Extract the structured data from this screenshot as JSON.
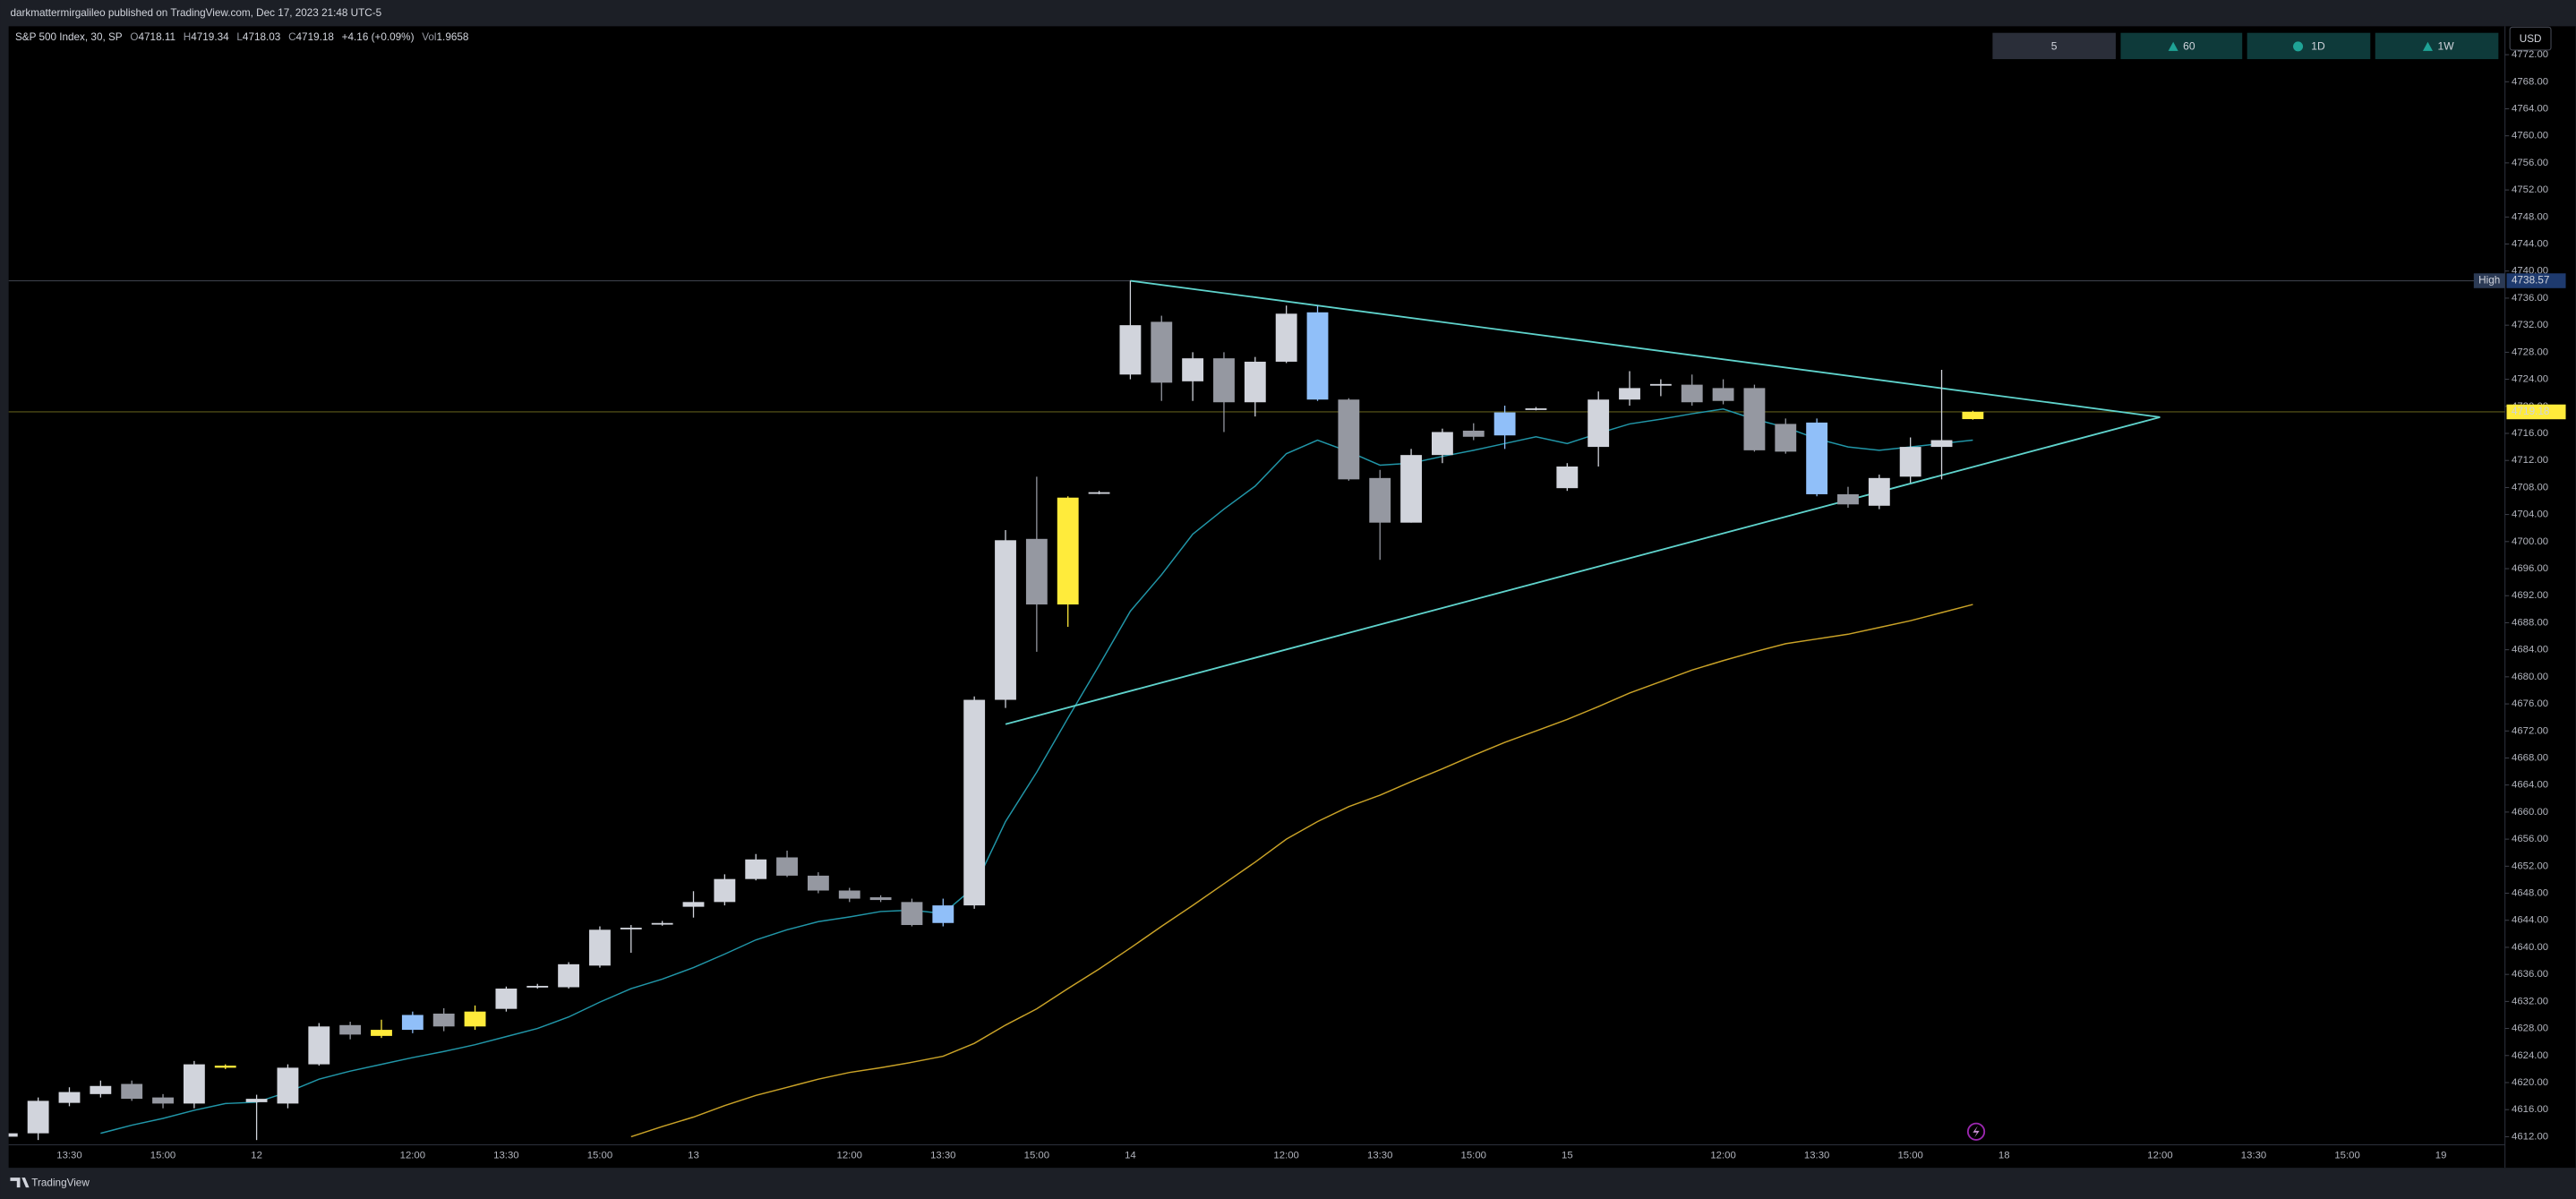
{
  "header": {
    "publisher": "darkmattermirgalileo published on TradingView.com, Dec 17, 2023 21:48 UTC-5",
    "symbol": "S&P 500 Index, 30, SP",
    "ohlc_labels": [
      "O",
      "H",
      "L",
      "C"
    ],
    "change": "+4.16 (+0.09%)",
    "volume_label": "Vol",
    "volume": 1.9658
  },
  "toolbar": {
    "intervals": [
      "5",
      "60",
      "1D",
      "1W"
    ],
    "currency": "USD"
  },
  "footer": "TradingView",
  "chart_data": {
    "type": "candlestick",
    "categories": [
      null,
      null,
      "13:30",
      null,
      null,
      "15:00",
      null,
      null,
      "12",
      null,
      null,
      null,
      null,
      "12:00",
      null,
      null,
      "13:30",
      null,
      null,
      "15:00",
      null,
      null,
      "13",
      null,
      null,
      null,
      null,
      "12:00",
      null,
      null,
      "13:30",
      null,
      null,
      "15:00",
      null,
      null,
      "14",
      null,
      null,
      null,
      null,
      "12:00",
      null,
      null,
      "13:30",
      null,
      null,
      "15:00",
      null,
      null,
      "15",
      null,
      null,
      null,
      null,
      "12:00",
      null,
      null,
      "13:30",
      null,
      null,
      "15:00",
      null,
      null,
      "18",
      null,
      null,
      null,
      null,
      "12:00",
      null,
      null,
      "13:30",
      null,
      null,
      "15:00",
      null,
      null,
      "19"
    ],
    "open": [
      4612,
      4612.5,
      4617,
      4618.3,
      4619.8,
      4617.8,
      4616.9,
      4622.2,
      4617.1,
      4616.9,
      4622.7,
      4628.5,
      4626.9,
      4627.8,
      4630.2,
      4628.3,
      4630.9,
      4634.1,
      4634.1,
      4637.3,
      4642.8,
      4643.5,
      4646,
      4646.7,
      4650.1,
      4653.3,
      4650.6,
      4648.4,
      4647.4,
      4646.7,
      4643.6,
      4646.2,
      4676.6,
      4700.4,
      4690.7,
      4707.2,
      4724.7,
      4732.5,
      4723.7,
      4727.1,
      4720.6,
      4726.6,
      4733.9,
      4721,
      4709.4,
      4702.8,
      4712.8,
      4716.4,
      4715.7,
      4719.6,
      4707.9,
      4714,
      4721,
      4723.1,
      4723.2,
      4722.7,
      4722.7,
      4717.4,
      4717.6,
      4707,
      4705.3,
      4709.6,
      4714,
      4718.11,
      null,
      null,
      null,
      null,
      null,
      null,
      null,
      null,
      null,
      null,
      null,
      null,
      null,
      null,
      null
    ],
    "high": [
      4613,
      4617.8,
      4619.3,
      4620.3,
      4620.3,
      4618.3,
      4623.2,
      4622.7,
      4618.2,
      4622.7,
      4628.8,
      4629,
      4629.3,
      4630.5,
      4631,
      4631.4,
      4634.2,
      4634.6,
      4637.8,
      4643.1,
      4643.3,
      4643.9,
      4648.3,
      4650.8,
      4653.8,
      4654.3,
      4651.1,
      4648.8,
      4647.7,
      4647.2,
      4647.2,
      4677.1,
      4701.7,
      4709.6,
      4706.7,
      4707.5,
      4738.57,
      4733.4,
      4728,
      4728,
      4727.3,
      4734.9,
      4734.9,
      4721.2,
      4710.6,
      4713.7,
      4716.7,
      4717.5,
      4720.1,
      4719.9,
      4711.6,
      4722.2,
      4725.2,
      4724,
      4724.7,
      4724,
      4723.2,
      4718.2,
      4718.2,
      4708.1,
      4709.9,
      4715.4,
      4725.4,
      4719.34,
      null,
      null,
      null,
      null,
      null,
      null,
      null,
      null,
      null,
      null,
      null,
      null,
      null,
      null,
      null
    ],
    "low": [
      4611,
      4611.5,
      4616.5,
      4617.8,
      4617.3,
      4616.2,
      4616.2,
      4622,
      4611.5,
      4616.2,
      4622.5,
      4626.4,
      4626.6,
      4627.3,
      4627.6,
      4627.8,
      4630.5,
      4633.9,
      4633.9,
      4637,
      4639.2,
      4643.2,
      4644.4,
      4646.2,
      4649.9,
      4650.4,
      4648,
      4646.7,
      4646.7,
      4643.1,
      4643.1,
      4645.7,
      4675.4,
      4683.7,
      4687.4,
      4707,
      4724,
      4720.8,
      4720.8,
      4716.2,
      4718.5,
      4726.4,
      4720.8,
      4709,
      4697.3,
      4702.8,
      4711.6,
      4715,
      4713.7,
      4719.4,
      4707.5,
      4711.1,
      4720.1,
      4721.5,
      4720.1,
      4720.3,
      4713.3,
      4713,
      4706.7,
      4705,
      4704.8,
      4708.7,
      4709.2,
      4718.03,
      null,
      null,
      null,
      null,
      null,
      null,
      null,
      null,
      null,
      null,
      null,
      null,
      null,
      null,
      null
    ],
    "close": [
      4612.5,
      4617.3,
      4618.6,
      4619.5,
      4617.6,
      4616.9,
      4622.7,
      4622.5,
      4617.6,
      4622.2,
      4628.3,
      4627.1,
      4627.8,
      4630,
      4628.3,
      4630.5,
      4633.9,
      4634.3,
      4637.5,
      4642.6,
      4642.9,
      4643.6,
      4646.7,
      4650.1,
      4653,
      4650.6,
      4648.4,
      4647.2,
      4647,
      4643.3,
      4646.2,
      4676.6,
      4700.2,
      4690.7,
      4706.5,
      4707.3,
      4732,
      4723.5,
      4727.1,
      4720.6,
      4726.6,
      4733.7,
      4721,
      4709.2,
      4702.8,
      4712.8,
      4716.2,
      4715.5,
      4719.1,
      4719.7,
      4711.1,
      4721,
      4722.7,
      4723.3,
      4720.6,
      4720.8,
      4713.5,
      4713.3,
      4707,
      4705.5,
      4709.4,
      4714,
      4715,
      4719.18,
      null,
      null,
      null,
      null,
      null,
      null,
      null,
      null,
      null,
      null,
      null,
      null,
      null,
      null,
      null
    ],
    "colors": [
      "#d1d4dc",
      "#d1d4dc",
      "#d1d4dc",
      "#d1d4dc",
      "#9598a1",
      "#9598a1",
      "#d1d4dc",
      "#ffeb3b",
      "#d1d4dc",
      "#d1d4dc",
      "#d1d4dc",
      "#9598a1",
      "#ffeb3b",
      "#90bff9",
      "#9598a1",
      "#ffeb3b",
      "#d1d4dc",
      "#d1d4dc",
      "#d1d4dc",
      "#d1d4dc",
      "#d1d4dc",
      "#d1d4dc",
      "#d1d4dc",
      "#d1d4dc",
      "#d1d4dc",
      "#9598a1",
      "#9598a1",
      "#9598a1",
      "#9598a1",
      "#9598a1",
      "#90bff9",
      "#d1d4dc",
      "#d1d4dc",
      "#9598a1",
      "#ffeb3b",
      "#d1d4dc",
      "#d1d4dc",
      "#9598a1",
      "#d1d4dc",
      "#9598a1",
      "#d1d4dc",
      "#d1d4dc",
      "#90bff9",
      "#9598a1",
      "#9598a1",
      "#d1d4dc",
      "#d1d4dc",
      "#9598a1",
      "#90bff9",
      "#d1d4dc",
      "#d1d4dc",
      "#d1d4dc",
      "#d1d4dc",
      "#d1d4dc",
      "#9598a1",
      "#9598a1",
      "#9598a1",
      "#9598a1",
      "#90bff9",
      "#9598a1",
      "#d1d4dc",
      "#d1d4dc",
      "#d1d4dc",
      "#ffeb3b",
      null,
      null,
      null,
      null,
      null,
      null,
      null,
      null,
      null,
      null,
      null,
      null,
      null,
      null,
      null
    ],
    "overlays": [
      {
        "color": "#2196a8",
        "values": [
          null,
          null,
          null,
          4612.5,
          4613.7,
          4614.7,
          4615.9,
          4616.9,
          4617.1,
          4618.6,
          4620.5,
          4621.7,
          4622.7,
          4623.7,
          4624.6,
          4625.6,
          4626.8,
          4628.0,
          4629.7,
          4631.9,
          4633.9,
          4635.3,
          4637.0,
          4639.0,
          4641.1,
          4642.6,
          4643.8,
          4644.5,
          4645.3,
          4645.5,
          4645.0,
          4648.9,
          4658.6,
          4665.9,
          4673.9,
          4681.7,
          4689.7,
          4695.1,
          4701.1,
          4704.8,
          4708.2,
          4713.0,
          4715.0,
          4713.3,
          4711.3,
          4711.6,
          4712.6,
          4713.5,
          4714.5,
          4715.5,
          4714.5,
          4716.0,
          4717.4,
          4718.1,
          4718.9,
          4719.6,
          4718.1,
          4716.9,
          4715.2,
          4714.0,
          4713.5,
          4714.0,
          4714.5,
          4715.0,
          null,
          null,
          null,
          null,
          null,
          null,
          null,
          null,
          null,
          null,
          null,
          null,
          null,
          null,
          null
        ]
      },
      {
        "color": "#c9a227",
        "values": [
          null,
          null,
          null,
          null,
          null,
          null,
          null,
          null,
          null,
          null,
          null,
          null,
          null,
          null,
          null,
          null,
          null,
          null,
          null,
          null,
          4612,
          4613.5,
          4614.9,
          4616.6,
          4618.1,
          4619.3,
          4620.5,
          4621.5,
          4622.2,
          4623.0,
          4623.9,
          4625.8,
          4628.5,
          4630.9,
          4633.9,
          4636.8,
          4639.9,
          4643.1,
          4646.2,
          4649.4,
          4652.6,
          4656.0,
          4658.6,
          4660.8,
          4662.5,
          4664.5,
          4666.4,
          4668.4,
          4670.3,
          4672.0,
          4673.7,
          4675.6,
          4677.6,
          4679.3,
          4681.0,
          4682.4,
          4683.7,
          4684.9,
          4685.6,
          4686.3,
          4687.3,
          4688.3,
          4689.5,
          4690.7,
          null,
          null,
          null,
          null,
          null,
          null,
          null,
          null,
          null,
          null,
          null,
          null,
          null,
          null,
          null
        ]
      }
    ],
    "trendlines": [
      {
        "color": "#5fd3cc",
        "from": 4738.57,
        "to": 4718.4
      },
      {
        "color": "#5fd3cc",
        "from": 4673.0,
        "to": 4718.4
      }
    ],
    "high_marker": {
      "label": "High",
      "value": 4738.57
    },
    "ylim": [
      4610.8,
      4776.2
    ],
    "yticks": [
      {
        "value": 4612,
        "label": "4612.00"
      },
      {
        "value": 4616,
        "label": "4616.00"
      },
      {
        "value": 4620,
        "label": "4620.00"
      },
      {
        "value": 4624,
        "label": "4624.00"
      },
      {
        "value": 4628,
        "label": "4628.00"
      },
      {
        "value": 4632,
        "label": "4632.00"
      },
      {
        "value": 4636,
        "label": "4636.00"
      },
      {
        "value": 4640,
        "label": "4640.00"
      },
      {
        "value": 4644,
        "label": "4644.00"
      },
      {
        "value": 4648,
        "label": "4648.00"
      },
      {
        "value": 4652,
        "label": "4652.00"
      },
      {
        "value": 4656,
        "label": "4656.00"
      },
      {
        "value": 4660,
        "label": "4660.00"
      },
      {
        "value": 4664,
        "label": "4664.00"
      },
      {
        "value": 4668,
        "label": "4668.00"
      },
      {
        "value": 4672,
        "label": "4672.00"
      },
      {
        "value": 4676,
        "label": "4676.00"
      },
      {
        "value": 4680,
        "label": "4680.00"
      },
      {
        "value": 4684,
        "label": "4684.00"
      },
      {
        "value": 4688,
        "label": "4688.00"
      },
      {
        "value": 4692,
        "label": "4692.00"
      },
      {
        "value": 4696,
        "label": "4696.00"
      },
      {
        "value": 4700,
        "label": "4700.00"
      },
      {
        "value": 4704,
        "label": "4704.00"
      },
      {
        "value": 4708,
        "label": "4708.00"
      },
      {
        "value": 4712,
        "label": "4712.00"
      },
      {
        "value": 4716,
        "label": "4716.00"
      },
      {
        "value": 4720,
        "label": "4720.00"
      },
      {
        "value": 4724,
        "label": "4724.00"
      },
      {
        "value": 4728,
        "label": "4728.00"
      },
      {
        "value": 4732,
        "label": "4732.00"
      },
      {
        "value": 4736,
        "label": "4736.00"
      },
      {
        "value": 4740,
        "label": "4740.00"
      },
      {
        "value": 4744,
        "label": "4744.00"
      },
      {
        "value": 4748,
        "label": "4748.00"
      },
      {
        "value": 4752,
        "label": "4752.00"
      },
      {
        "value": 4756,
        "label": "4756.00"
      },
      {
        "value": 4760,
        "label": "4760.00"
      },
      {
        "value": 4764,
        "label": "4764.00"
      },
      {
        "value": 4768,
        "label": "4768.00"
      },
      {
        "value": 4772,
        "label": "4772.00"
      }
    ],
    "grid": false
  }
}
